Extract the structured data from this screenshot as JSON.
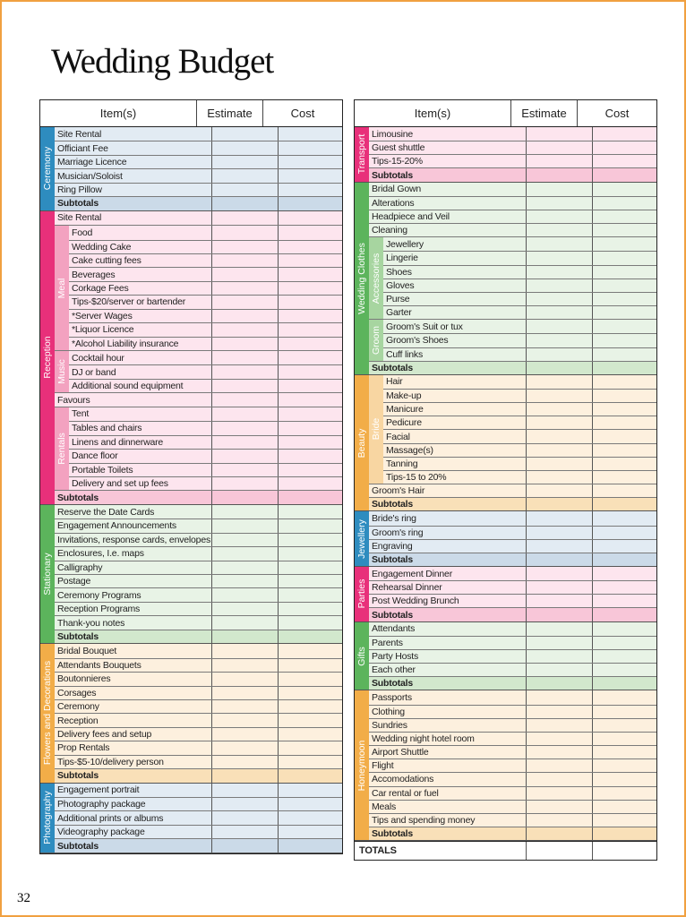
{
  "title": "Wedding Budget",
  "page_number": "32",
  "headers": {
    "item": "Item(s)",
    "estimate": "Estimate",
    "cost": "Cost"
  },
  "subtotal_label": "Subtotals",
  "totals_label": "TOTALS",
  "colors": {
    "blue": {
      "band": "#2e8cbf",
      "sub": "#b9cde0",
      "row": "#e2ebf3",
      "subt": "#cbdae8"
    },
    "pink": {
      "band": "#e8307a",
      "sub": "#f3a2c0",
      "row": "#fde5ee",
      "subt": "#f8c6d8"
    },
    "green": {
      "band": "#5cb45c",
      "sub": "#a7d5a0",
      "row": "#e8f3e6",
      "subt": "#d2e8cd"
    },
    "orange": {
      "band": "#f2ad48",
      "sub": "#f8d6a2",
      "row": "#fdf0de",
      "subt": "#f9e0b8"
    }
  },
  "left": {
    "sections": [
      {
        "label": "Ceremony",
        "color": "blue",
        "items": [
          "Site Rental",
          "Officiant Fee",
          "Marriage Licence",
          "Musician/Soloist",
          "Ring Pillow"
        ]
      },
      {
        "label": "Reception",
        "color": "pink",
        "items": [
          "Site Rental",
          {
            "group": "Meal",
            "items": [
              "Food",
              "Wedding Cake",
              "Cake cutting fees",
              "Beverages",
              "Corkage Fees",
              "Tips-$20/server or bartender",
              "*Server Wages",
              "*Liquor Licence",
              "*Alcohol Liability insurance"
            ]
          },
          {
            "group": "Music",
            "items": [
              "Cocktail hour",
              "DJ or band",
              "Additional sound equipment"
            ]
          },
          "Favours",
          {
            "group": "Rentals",
            "items": [
              "Tent",
              "Tables and chairs",
              "Linens and dinnerware",
              "Dance floor",
              "Portable Toilets",
              "Delivery and set up fees"
            ]
          }
        ]
      },
      {
        "label": "Stationary",
        "color": "green",
        "items": [
          "Reserve the Date Cards",
          "Engagement Announcements",
          "Invitations, response cards, envelopes",
          "Enclosures, I.e. maps",
          "Calligraphy",
          "Postage",
          "Ceremony Programs",
          "Reception Programs",
          "Thank-you notes"
        ]
      },
      {
        "label": "Flowers and Decorations",
        "color": "orange",
        "items": [
          "Bridal Bouquet",
          "Attendants Bouquets",
          "Boutonnieres",
          "Corsages",
          "Ceremony",
          "Reception",
          "Delivery fees and setup",
          "Prop Rentals",
          "Tips-$5-10/delivery person"
        ]
      },
      {
        "label": "Photography",
        "color": "blue",
        "items": [
          "Engagement portrait",
          "Photography package",
          "Additional prints or albums",
          "Videography package"
        ]
      }
    ]
  },
  "right": {
    "sections": [
      {
        "label": "Transport",
        "color": "pink",
        "items": [
          "Limousine",
          "Guest shuttle",
          "Tips-15-20%"
        ]
      },
      {
        "label": "Wedding Clothes",
        "color": "green",
        "items": [
          "Bridal Gown",
          "Alterations",
          "Headpiece and Veil",
          "Cleaning",
          {
            "group": "Accessories",
            "items": [
              "Jewellery",
              "Lingerie",
              "Shoes",
              "Gloves",
              "Purse",
              "Garter"
            ]
          },
          {
            "group": "Groom",
            "items": [
              "Groom's Suit or tux",
              "Groom's Shoes",
              "Cuff links"
            ]
          }
        ]
      },
      {
        "label": "Beauty",
        "color": "orange",
        "items": [
          {
            "group": "Bride",
            "items": [
              "Hair",
              "Make-up",
              "Manicure",
              "Pedicure",
              "Facial",
              "Massage(s)",
              "Tanning",
              "Tips-15 to 20%"
            ]
          },
          "Groom's Hair"
        ]
      },
      {
        "label": "Jewellery",
        "color": "blue",
        "items": [
          "Bride's ring",
          "Groom's ring",
          "Engraving"
        ]
      },
      {
        "label": "Parties",
        "color": "pink",
        "items": [
          "Engagement Dinner",
          "Rehearsal Dinner",
          "Post Wedding Brunch"
        ]
      },
      {
        "label": "Gifts",
        "color": "green",
        "items": [
          "Attendants",
          "Parents",
          "Party Hosts",
          "Each other"
        ]
      },
      {
        "label": "Honeymoon",
        "color": "orange",
        "items": [
          "Passports",
          "Clothing",
          "Sundries",
          "Wedding night hotel room",
          "Airport Shuttle",
          "Flight",
          "Accomodations",
          "Car rental or fuel",
          "Meals",
          "Tips and spending money"
        ]
      }
    ]
  }
}
